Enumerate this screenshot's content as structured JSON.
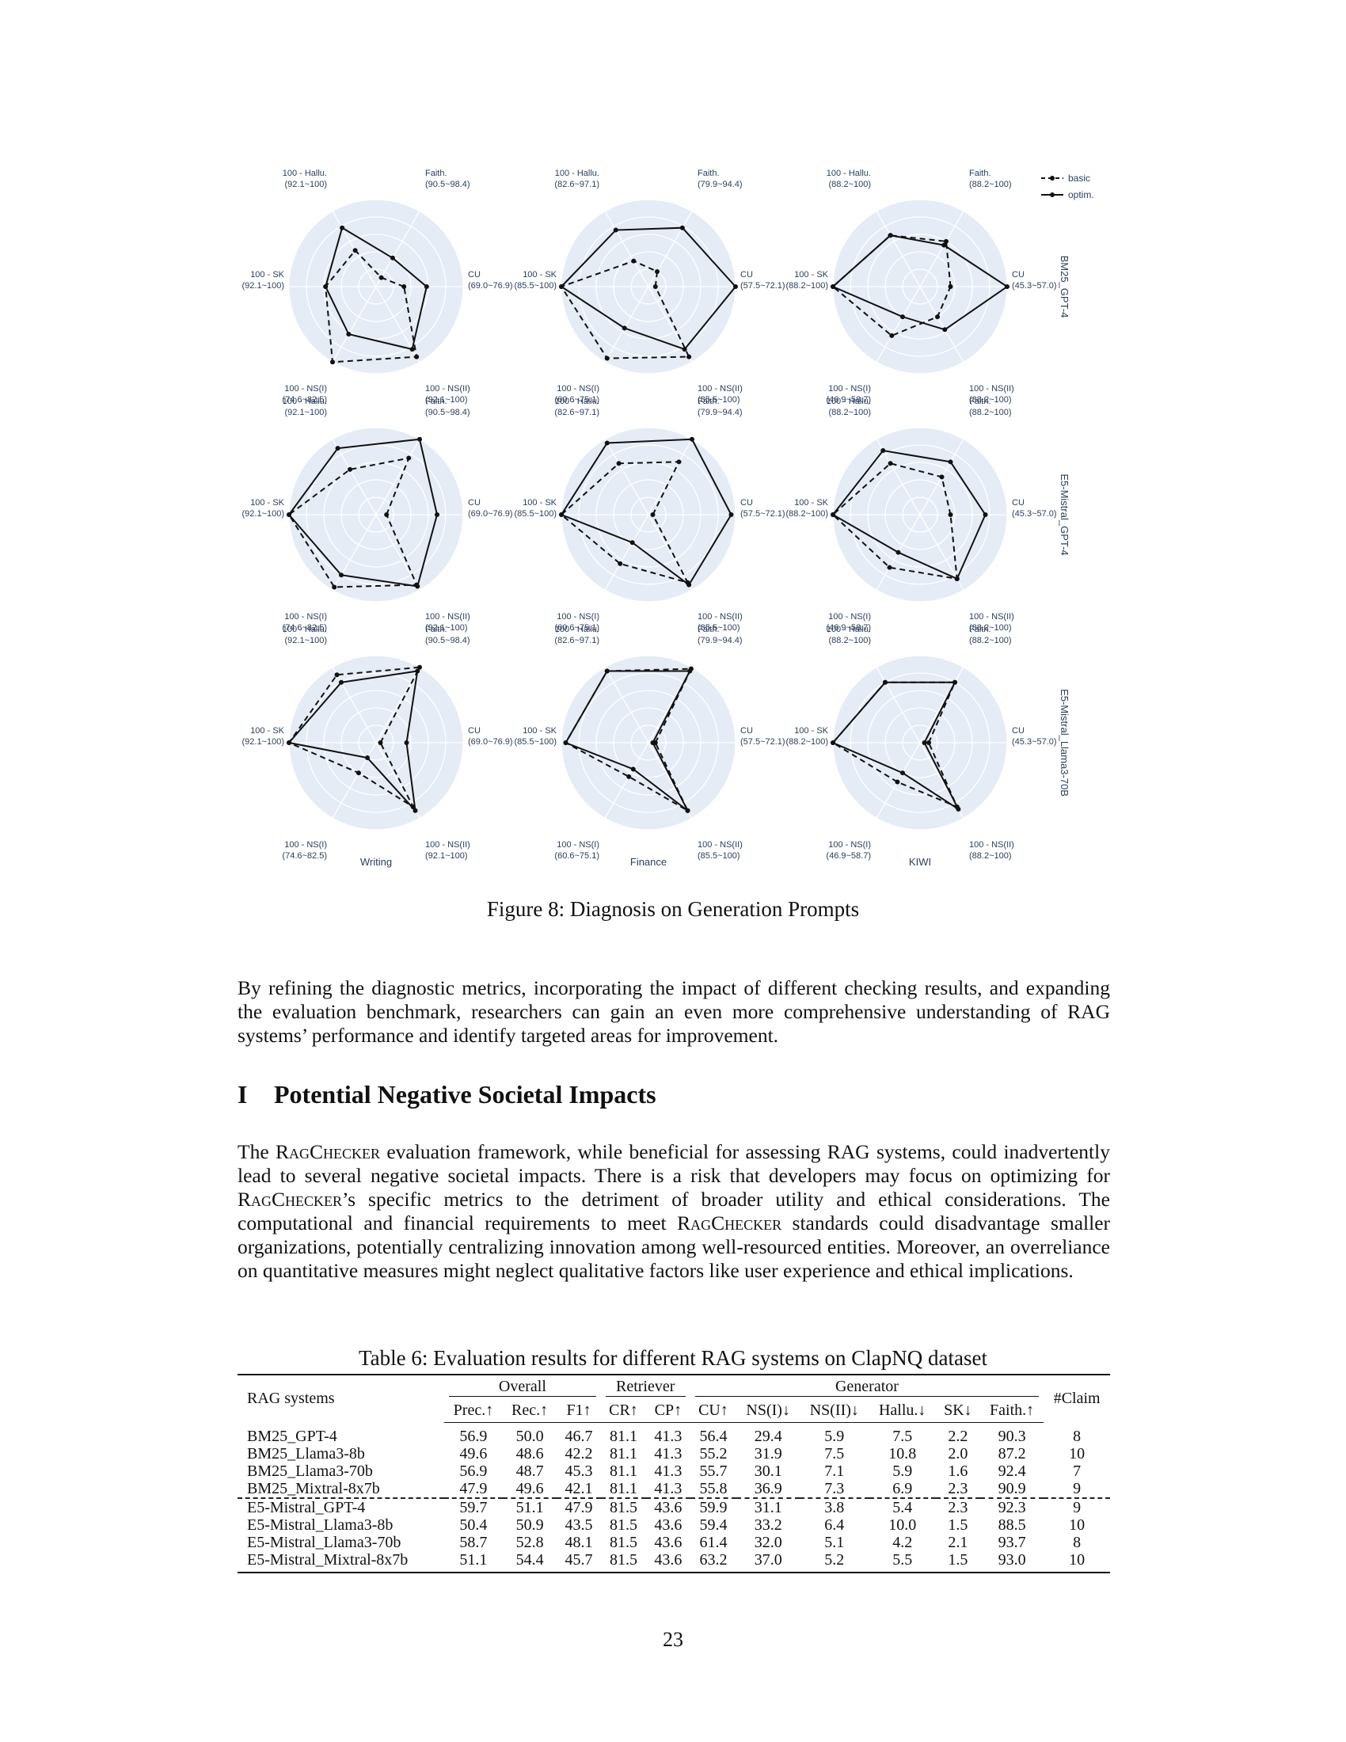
{
  "figure": {
    "caption": "Figure 8: Diagnosis on Generation Prompts",
    "legend": [
      {
        "name": "basic",
        "dash": "dashed"
      },
      {
        "name": "optim.",
        "dash": "solid"
      }
    ],
    "column_titles": [
      "Writing",
      "Finance",
      "KIWI"
    ],
    "row_titles": [
      "BM25_GPT-4",
      "E5-Mistral_GPT-4",
      "E5-Mistral_Llama3-70B"
    ],
    "axis_names": [
      "CU",
      "Faith.",
      "100 - Hallu.",
      "100 - SK",
      "100 - NS(I)",
      "100 - NS(II)"
    ],
    "ranges": [
      [
        "(69.0~76.9)",
        "(90.5~98.4)",
        "(92.1~100)",
        "(92.1~100)",
        "(74.6~82.5)",
        "(92.1~100)"
      ],
      [
        "(57.5~72.1)",
        "(79.9~94.4)",
        "(82.6~97.1)",
        "(85.5~100)",
        "(60.6~75.1)",
        "(85.5~100)"
      ],
      [
        "(45.3~57.0)",
        "(88.2~100)",
        "(88.2~100)",
        "(88.2~100)",
        "(46.9~58.7)",
        "(88.2~100)"
      ]
    ]
  },
  "chart_data": {
    "type": "radar",
    "axes_order": [
      "CU",
      "Faith.",
      "100 - Hallu.",
      "100 - SK",
      "100 - NS(I)",
      "100 - NS(II)"
    ],
    "value_scale": "normalized 0-1 within each axis range",
    "grid": true,
    "legend": "top-right",
    "panels": [
      {
        "row": "BM25_GPT-4",
        "column": "Writing",
        "series": [
          {
            "name": "basic",
            "values": [
              0.32,
              0.12,
              0.48,
              0.58,
              1.0,
              0.93
            ]
          },
          {
            "name": "optim.",
            "values": [
              0.58,
              0.38,
              0.78,
              0.58,
              0.63,
              0.83
            ]
          }
        ]
      },
      {
        "row": "BM25_GPT-4",
        "column": "Finance",
        "series": [
          {
            "name": "basic",
            "values": [
              0.08,
              0.2,
              0.34,
              1.0,
              0.95,
              0.93
            ]
          },
          {
            "name": "optim.",
            "values": [
              1.0,
              0.78,
              0.75,
              1.0,
              0.55,
              0.83
            ]
          }
        ]
      },
      {
        "row": "BM25_GPT-4",
        "column": "KIWI",
        "series": [
          {
            "name": "basic",
            "values": [
              0.35,
              0.6,
              0.68,
              1.0,
              0.65,
              0.4
            ]
          },
          {
            "name": "optim.",
            "values": [
              1.0,
              0.55,
              0.68,
              1.0,
              0.4,
              0.57
            ]
          }
        ]
      },
      {
        "row": "E5-Mistral_GPT-4",
        "column": "Writing",
        "series": [
          {
            "name": "basic",
            "values": [
              0.12,
              0.75,
              0.6,
              1.0,
              0.96,
              0.93
            ]
          },
          {
            "name": "optim.",
            "values": [
              0.7,
              1.0,
              0.88,
              1.0,
              0.8,
              0.95
            ]
          }
        ]
      },
      {
        "row": "E5-Mistral_GPT-4",
        "column": "Finance",
        "series": [
          {
            "name": "basic",
            "values": [
              0.05,
              0.7,
              0.68,
              1.0,
              0.65,
              0.9
            ]
          },
          {
            "name": "optim.",
            "values": [
              0.95,
              1.0,
              0.95,
              1.0,
              0.37,
              0.93
            ]
          }
        ]
      },
      {
        "row": "E5-Mistral_GPT-4",
        "column": "KIWI",
        "series": [
          {
            "name": "basic",
            "values": [
              0.35,
              0.5,
              0.68,
              1.0,
              0.7,
              0.85
            ]
          },
          {
            "name": "optim.",
            "values": [
              0.75,
              0.7,
              0.85,
              1.0,
              0.5,
              0.85
            ]
          }
        ]
      },
      {
        "row": "E5-Mistral_Llama3-70B",
        "column": "Writing",
        "series": [
          {
            "name": "basic",
            "values": [
              0.05,
              1.0,
              0.9,
              1.0,
              0.4,
              0.85
            ]
          },
          {
            "name": "optim.",
            "values": [
              0.35,
              0.95,
              0.8,
              1.0,
              0.2,
              0.9
            ]
          }
        ]
      },
      {
        "row": "E5-Mistral_Llama3-70B",
        "column": "Finance",
        "series": [
          {
            "name": "basic",
            "values": [
              0.08,
              0.98,
              0.95,
              0.95,
              0.45,
              0.9
            ]
          },
          {
            "name": "optim.",
            "values": [
              0.05,
              0.95,
              0.95,
              0.95,
              0.35,
              0.9
            ]
          }
        ]
      },
      {
        "row": "E5-Mistral_Llama3-70B",
        "column": "KIWI",
        "series": [
          {
            "name": "basic",
            "values": [
              0.1,
              0.8,
              0.8,
              1.0,
              0.52,
              0.85
            ]
          },
          {
            "name": "optim.",
            "values": [
              0.05,
              0.8,
              0.8,
              1.0,
              0.4,
              0.88
            ]
          }
        ]
      }
    ]
  },
  "paragraph1": "By refining the diagnostic metrics, incorporating the impact of different checking results, and expanding the evaluation benchmark, researchers can gain an even more comprehensive understanding of RAG systems’ performance and identify targeted areas for improvement.",
  "section": {
    "number": "I",
    "title": "Potential Negative Societal Impacts"
  },
  "paragraph2": {
    "p1": "The ",
    "brand": "RagChecker",
    "p2": " evaluation framework, while beneficial for assessing RAG systems, could inadvertently lead to several negative societal impacts. There is a risk that developers may focus on optimizing for ",
    "p3": "’s specific metrics to the detriment of broader utility and ethical considerations. The computational and financial requirements to meet ",
    "p4": " standards could disadvantage smaller organizations, potentially centralizing innovation among well-resourced entities. Moreover, an overreliance on quantitative measures might neglect qualitative factors like user experience and ethical implications."
  },
  "table": {
    "caption": "Table 6: Evaluation results for different RAG systems on ClapNQ dataset",
    "systems_header": "RAG systems",
    "groups": {
      "overall": "Overall",
      "retriever": "Retriever",
      "generator": "Generator"
    },
    "claim_header": "#Claim",
    "columns": [
      "Prec.↑",
      "Rec.↑",
      "F1↑",
      "CR↑",
      "CP↑",
      "CU↑",
      "NS(I)↓",
      "NS(II)↓",
      "Hallu.↓",
      "SK↓",
      "Faith.↑"
    ],
    "rows": [
      {
        "system": "BM25_GPT-4",
        "values": [
          "56.9",
          "50.0",
          "46.7",
          "81.1",
          "41.3",
          "56.4",
          "29.4",
          "5.9",
          "7.5",
          "2.2",
          "90.3",
          "8"
        ]
      },
      {
        "system": "BM25_Llama3-8b",
        "values": [
          "49.6",
          "48.6",
          "42.2",
          "81.1",
          "41.3",
          "55.2",
          "31.9",
          "7.5",
          "10.8",
          "2.0",
          "87.2",
          "10"
        ]
      },
      {
        "system": "BM25_Llama3-70b",
        "values": [
          "56.9",
          "48.7",
          "45.3",
          "81.1",
          "41.3",
          "55.7",
          "30.1",
          "7.1",
          "5.9",
          "1.6",
          "92.4",
          "7"
        ]
      },
      {
        "system": "BM25_Mixtral-8x7b",
        "values": [
          "47.9",
          "49.6",
          "42.1",
          "81.1",
          "41.3",
          "55.8",
          "36.9",
          "7.3",
          "6.9",
          "2.3",
          "90.9",
          "9"
        ]
      },
      {
        "system": "E5-Mistral_GPT-4",
        "values": [
          "59.7",
          "51.1",
          "47.9",
          "81.5",
          "43.6",
          "59.9",
          "31.1",
          "3.8",
          "5.4",
          "2.3",
          "92.3",
          "9"
        ]
      },
      {
        "system": "E5-Mistral_Llama3-8b",
        "values": [
          "50.4",
          "50.9",
          "43.5",
          "81.5",
          "43.6",
          "59.4",
          "33.2",
          "6.4",
          "10.0",
          "1.5",
          "88.5",
          "10"
        ]
      },
      {
        "system": "E5-Mistral_Llama3-70b",
        "values": [
          "58.7",
          "52.8",
          "48.1",
          "81.5",
          "43.6",
          "61.4",
          "32.0",
          "5.1",
          "4.2",
          "2.1",
          "93.7",
          "8"
        ]
      },
      {
        "system": "E5-Mistral_Mixtral-8x7b",
        "values": [
          "51.1",
          "54.4",
          "45.7",
          "81.5",
          "43.6",
          "63.2",
          "37.0",
          "5.2",
          "5.5",
          "1.5",
          "93.0",
          "10"
        ]
      }
    ]
  },
  "page_number": "23"
}
